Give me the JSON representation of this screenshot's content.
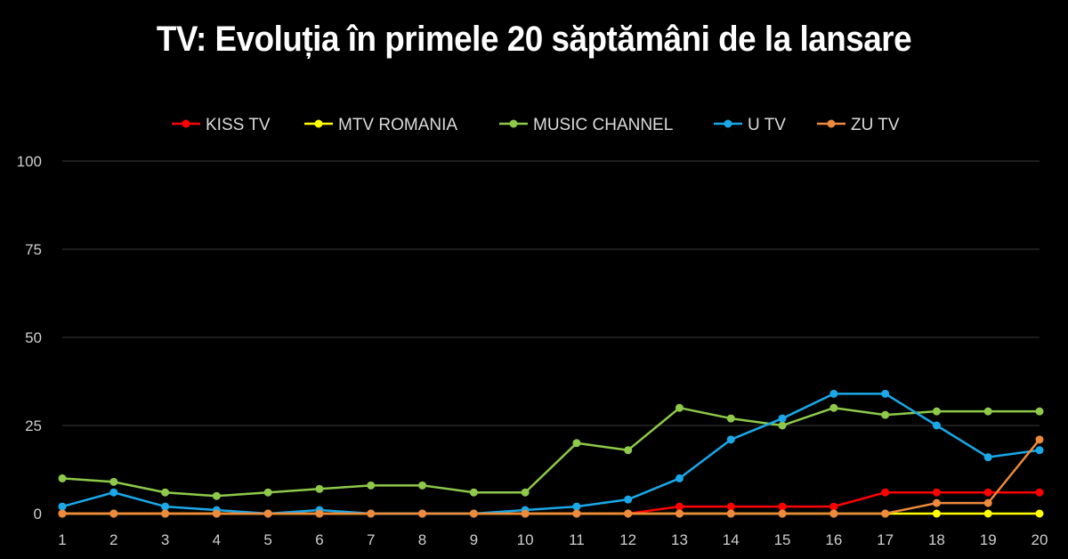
{
  "title": "TV: Evoluția în primele 20 săptămâni de la lansare",
  "chart_data": {
    "type": "line",
    "title": "TV: Evoluția în primele 20 săptămâni de la lansare",
    "x": [
      "1",
      "2",
      "3",
      "4",
      "5",
      "6",
      "7",
      "8",
      "9",
      "10",
      "11",
      "12",
      "13",
      "14",
      "15",
      "16",
      "17",
      "18",
      "19",
      "20"
    ],
    "ylim": [
      0,
      100
    ],
    "yticks": [
      0,
      25,
      50,
      75,
      100
    ],
    "grid": true,
    "legend_position": "top",
    "xlabel": "",
    "ylabel": "",
    "series": [
      {
        "name": "KISS TV",
        "color": "#ff0000",
        "values": [
          0,
          0,
          0,
          0,
          0,
          0,
          0,
          0,
          0,
          0,
          0,
          0,
          2,
          2,
          2,
          2,
          6,
          6,
          6,
          6
        ]
      },
      {
        "name": "MTV ROMANIA",
        "color": "#ffff00",
        "values": [
          0,
          0,
          0,
          0,
          0,
          0,
          0,
          0,
          0,
          0,
          0,
          0,
          0,
          0,
          0,
          0,
          0,
          0,
          0,
          0
        ]
      },
      {
        "name": "MUSIC CHANNEL",
        "color": "#8ec94a",
        "values": [
          10,
          9,
          6,
          5,
          6,
          7,
          8,
          8,
          6,
          6,
          20,
          18,
          30,
          27,
          25,
          30,
          28,
          29,
          29,
          29
        ]
      },
      {
        "name": "U TV",
        "color": "#1aa8e8",
        "values": [
          2,
          6,
          2,
          1,
          0,
          1,
          0,
          0,
          0,
          1,
          2,
          4,
          10,
          21,
          27,
          34,
          34,
          25,
          16,
          18
        ]
      },
      {
        "name": "ZU TV",
        "color": "#ee8a3c",
        "values": [
          0,
          0,
          0,
          0,
          0,
          0,
          0,
          0,
          0,
          0,
          0,
          0,
          0,
          0,
          0,
          0,
          0,
          3,
          3,
          21
        ]
      }
    ]
  }
}
